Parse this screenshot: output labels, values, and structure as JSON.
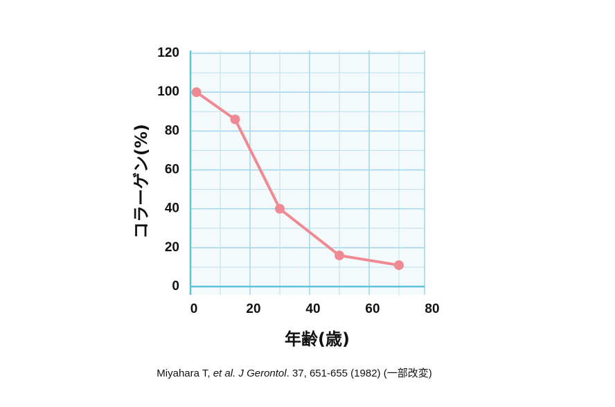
{
  "chart_data": {
    "type": "line",
    "x_label": "年齢(歳)",
    "y_label": "コラーゲン(%)",
    "caption": [
      {
        "text": "Miyahara T, ",
        "italic": false
      },
      {
        "text": "et al. J Gerontol",
        "italic": true
      },
      {
        "text": ". 37, 651-655 (1982) (一部改変)",
        "italic": false
      }
    ],
    "x": [
      2,
      15,
      30,
      50,
      70
    ],
    "series": [
      {
        "name": "コラーゲン",
        "color": "#f08a92",
        "values": [
          100,
          86,
          40,
          16,
          11
        ]
      }
    ],
    "xlim": [
      0,
      80
    ],
    "xticks": [
      0,
      20,
      40,
      60,
      80
    ],
    "ylim": [
      0,
      120
    ],
    "yticks": [
      0,
      20,
      40,
      60,
      80,
      100,
      120
    ],
    "grid": true
  }
}
